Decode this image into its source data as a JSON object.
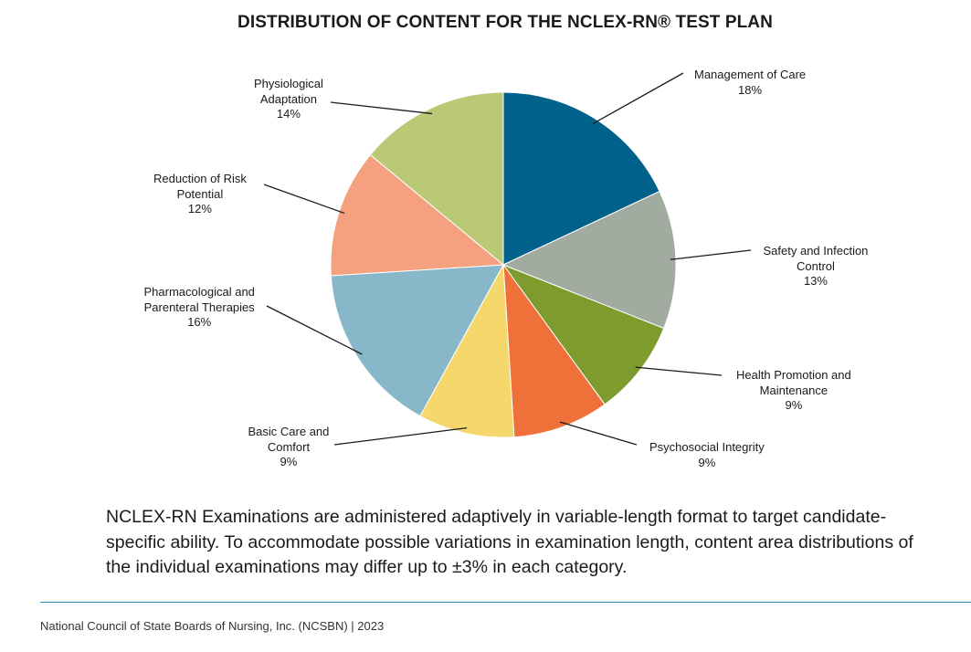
{
  "chart_data": {
    "type": "pie",
    "title": "DISTRIBUTION OF CONTENT FOR THE NCLEX-RN® TEST PLAN",
    "slices": [
      {
        "lines": [
          "Management of Care"
        ],
        "value": 18,
        "value_label": "18%",
        "color": "#00628b"
      },
      {
        "lines": [
          "Safety and Infection",
          "Control"
        ],
        "value": 13,
        "value_label": "13%",
        "color": "#a2aba0"
      },
      {
        "lines": [
          "Health Promotion and",
          "Maintenance"
        ],
        "value": 9,
        "value_label": "9%",
        "color": "#7e9c2e"
      },
      {
        "lines": [
          "Psychosocial Integrity"
        ],
        "value": 9,
        "value_label": "9%",
        "color": "#f0703a"
      },
      {
        "lines": [
          "Basic Care and",
          "Comfort"
        ],
        "value": 9,
        "value_label": "9%",
        "color": "#f5d76c"
      },
      {
        "lines": [
          "Pharmacological and",
          "Parenteral Therapies"
        ],
        "value": 16,
        "value_label": "16%",
        "color": "#88b7c9"
      },
      {
        "lines": [
          "Reduction of Risk",
          "Potential"
        ],
        "value": 12,
        "value_label": "12%",
        "color": "#f5a07f"
      },
      {
        "lines": [
          "Physiological",
          "Adaptation"
        ],
        "value": 14,
        "value_label": "14%",
        "color": "#bac975"
      }
    ]
  },
  "note": "NCLEX-RN Examinations are administered adaptively in variable-length format to target candidate-specific ability. To accommodate possible variations in examination length, content area distributions of the individual examinations may differ up to ±3% in each category.",
  "footer": "National Council of State Boards of Nursing, Inc. (NCSBN) | 2023"
}
